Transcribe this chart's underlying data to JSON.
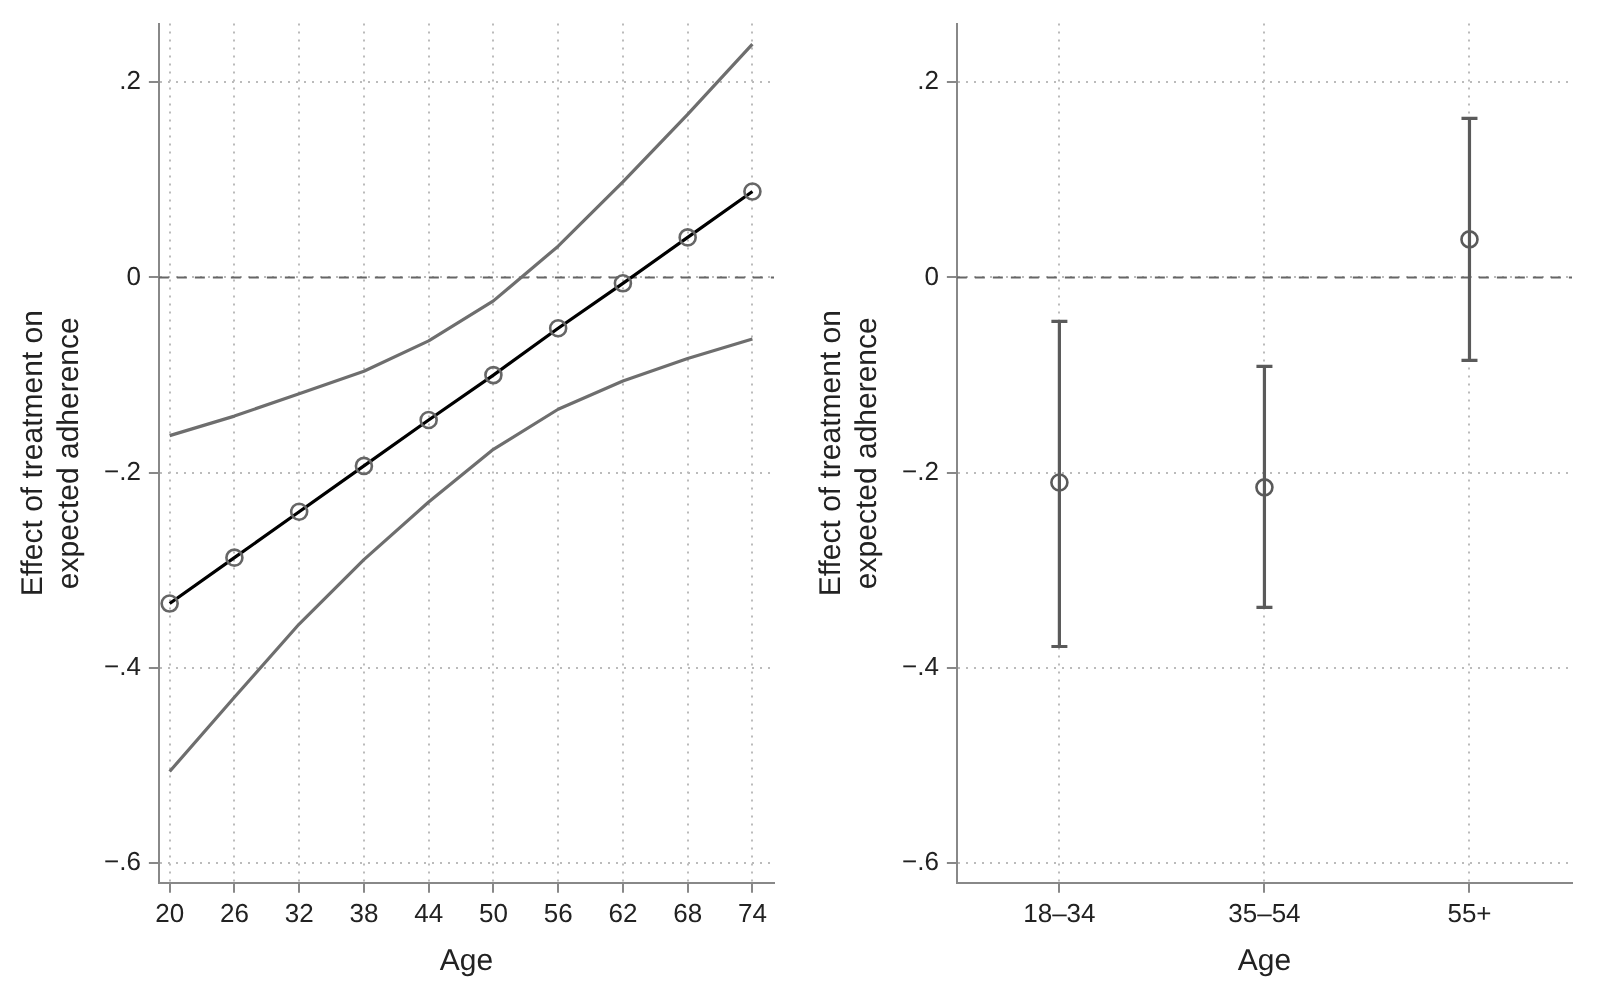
{
  "chart_data": [
    {
      "type": "line",
      "xlabel": "Age",
      "ylabel": "Effect of treatment on expected adherence",
      "x": [
        20,
        26,
        32,
        38,
        44,
        50,
        56,
        62,
        68,
        74
      ],
      "series": [
        {
          "color": "#6e6e6e",
          "marker": "none",
          "values": [
            -0.506,
            -0.43,
            -0.355,
            -0.289,
            -0.23,
            -0.176,
            -0.135,
            -0.106,
            -0.083,
            -0.063
          ]
        },
        {
          "color": "#6e6e6e",
          "marker": "none",
          "values": [
            -0.162,
            -0.142,
            -0.119,
            -0.096,
            -0.065,
            -0.024,
            0.032,
            0.098,
            0.167,
            0.239
          ]
        },
        {
          "color": "#000000",
          "values": [
            -0.334,
            -0.287,
            -0.24,
            -0.193,
            -0.146,
            -0.1,
            -0.052,
            -0.006,
            0.041,
            0.088
          ]
        }
      ],
      "xlim": [
        19,
        76
      ],
      "xticks": [
        20,
        26,
        32,
        38,
        44,
        50,
        56,
        62,
        68,
        74
      ],
      "ylim": [
        -0.62,
        0.26
      ],
      "yticks": [
        {
          "value": -0.6,
          "label": "−.6"
        },
        {
          "value": -0.4,
          "label": "−.4"
        },
        {
          "value": -0.2,
          "label": "−.2"
        },
        0,
        {
          "value": 0.2,
          "label": ".2"
        }
      ],
      "ref_lines": [
        {
          "axis": "y",
          "value": 0,
          "line_style": "dashed",
          "color": "#666666"
        }
      ],
      "grid": true,
      "legend": false,
      "marker": "circle",
      "line_style": "solid"
    },
    {
      "type": "scatter",
      "xlabel": "Age",
      "ylabel": "Effect of treatment on expected adherence",
      "categories": [
        "18–34",
        "35–54",
        "55+"
      ],
      "values": [
        -0.21,
        -0.215,
        0.039
      ],
      "errors": [
        [
          -0.378,
          -0.045
        ],
        [
          -0.338,
          -0.091
        ],
        [
          -0.085,
          0.163
        ]
      ],
      "color": "#5a5a5a",
      "ylim": [
        -0.62,
        0.26
      ],
      "yticks": [
        {
          "value": -0.6,
          "label": "−.6"
        },
        {
          "value": -0.4,
          "label": "−.4"
        },
        {
          "value": -0.2,
          "label": "−.2"
        },
        0,
        {
          "value": 0.2,
          "label": ".2"
        }
      ],
      "ref_lines": [
        {
          "axis": "y",
          "value": 0,
          "line_style": "dashed",
          "color": "#666666"
        }
      ],
      "grid": true,
      "legend": false,
      "marker": "circle"
    }
  ]
}
